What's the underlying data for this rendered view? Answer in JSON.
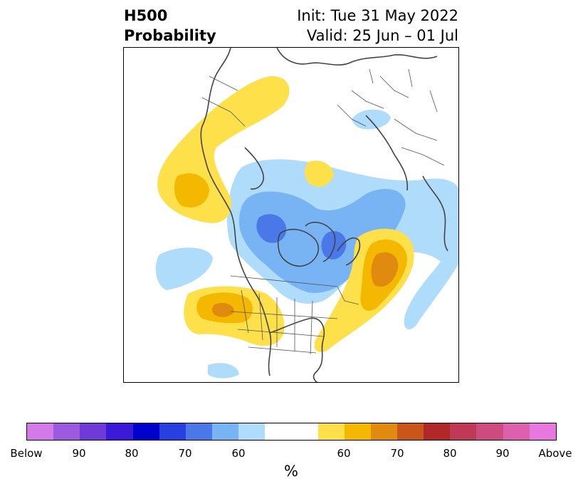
{
  "title": {
    "left_line1": "H500",
    "left_line2": "Probability",
    "right_line1": "Init: Tue 31 May 2022",
    "right_line2": "Valid: 25 Jun – 01 Jul"
  },
  "colorbar": {
    "colors": [
      "#d47ae8",
      "#9b5ae0",
      "#6f3bd8",
      "#3a1ad6",
      "#0000cc",
      "#2840e0",
      "#4a78e8",
      "#78b4f4",
      "#aedcfa",
      "#ffffff",
      "#ffffff",
      "#fde04a",
      "#f4b800",
      "#e08a10",
      "#c8561a",
      "#b02828",
      "#c03a55",
      "#cc4c80",
      "#dc60ac",
      "#e878e0"
    ],
    "tick_labels": [
      "Below",
      "90",
      "80",
      "70",
      "60",
      "60",
      "70",
      "80",
      "90",
      "Above"
    ],
    "unit": "%"
  },
  "legend_colors": {
    "below_light": "#aedcfa",
    "below_medium": "#78b4f4",
    "below_strong": "#4a78e8",
    "above_light": "#fde04a",
    "above_medium": "#f4b800",
    "above_strong": "#e08a10"
  }
}
